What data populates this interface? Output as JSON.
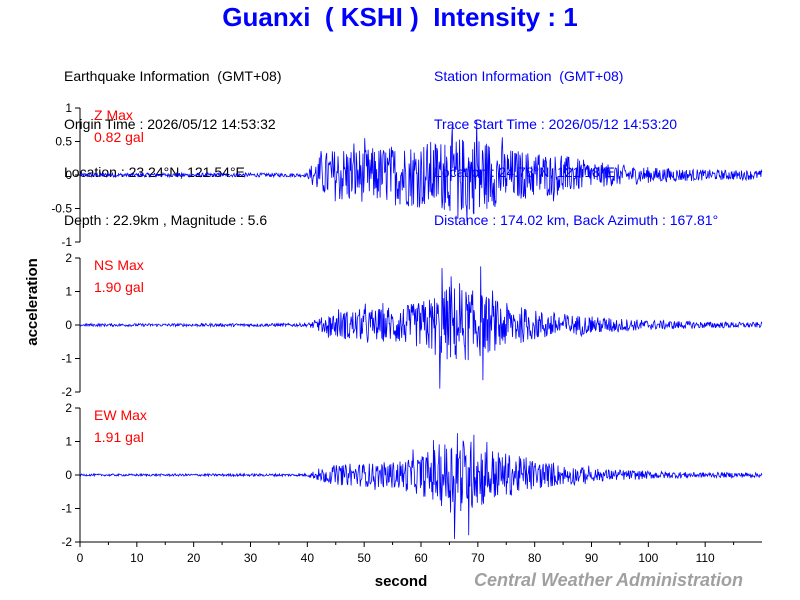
{
  "header": {
    "title": "Guanxi  ( KSHI )  Intensity : 1"
  },
  "earthquake_info": {
    "heading": "Earthquake Information  (GMT+08)",
    "origin_time": "Origin Time : 2026/05/12 14:53:32",
    "location": "Location : 23.24°N, 121.54°E",
    "depth_magnitude": "Depth : 22.9km , Magnitude : 5.6"
  },
  "station_info": {
    "heading": "Station Information  (GMT+08)",
    "trace_start": "Trace Start Time : 2026/05/12 14:53:20",
    "location": "Location : 24.78°N, 121.18°E",
    "distance": "Distance : 174.02 km, Back Azimuth : 167.81°"
  },
  "footer": {
    "credit": "Central Weather Administration"
  },
  "colors": {
    "trace": "#0000ff",
    "label": "#ff0000",
    "title": "#0000ff",
    "footer": "#a0a0a0"
  },
  "chart_data": {
    "type": "line",
    "xlabel": "second",
    "ylabel": "acceleration",
    "xlim": [
      0,
      120
    ],
    "x_ticks": [
      0,
      10,
      20,
      30,
      40,
      50,
      60,
      70,
      80,
      90,
      100,
      110
    ],
    "grid": false,
    "series": [
      {
        "name": "Z Max",
        "max_label": "0.82 gal",
        "max_value": 0.82,
        "ylim": [
          -1,
          1
        ],
        "y_ticks": [
          1,
          0.5,
          0,
          -0.5,
          -1
        ],
        "y_tick_labels": [
          "1",
          "0.5",
          "0",
          "-0.5",
          "-1"
        ],
        "envelope": [
          [
            0,
            0.03
          ],
          [
            40,
            0.03
          ],
          [
            41,
            0.2
          ],
          [
            43,
            0.35
          ],
          [
            47,
            0.45
          ],
          [
            50,
            0.4
          ],
          [
            55,
            0.45
          ],
          [
            60,
            0.5
          ],
          [
            65,
            0.55
          ],
          [
            70,
            0.6
          ],
          [
            75,
            0.4
          ],
          [
            80,
            0.35
          ],
          [
            85,
            0.3
          ],
          [
            90,
            0.2
          ],
          [
            100,
            0.12
          ],
          [
            110,
            0.08
          ],
          [
            120,
            0.07
          ]
        ],
        "peaks": [
          [
            69.8,
            0.82
          ],
          [
            68.1,
            -0.7
          ],
          [
            64.2,
            0.45
          ],
          [
            66.5,
            -0.65
          ]
        ]
      },
      {
        "name": "NS Max",
        "max_label": "1.90 gal",
        "max_value": 1.9,
        "ylim": [
          -2,
          2
        ],
        "y_ticks": [
          2,
          1,
          0,
          -1,
          -2
        ],
        "y_tick_labels": [
          "2",
          "1",
          "0",
          "-1",
          "-2"
        ],
        "envelope": [
          [
            0,
            0.04
          ],
          [
            40,
            0.05
          ],
          [
            42,
            0.2
          ],
          [
            45,
            0.4
          ],
          [
            50,
            0.5
          ],
          [
            55,
            0.5
          ],
          [
            60,
            0.7
          ],
          [
            63,
            1.0
          ],
          [
            66,
            1.2
          ],
          [
            70,
            1.0
          ],
          [
            74,
            0.7
          ],
          [
            80,
            0.45
          ],
          [
            85,
            0.35
          ],
          [
            90,
            0.25
          ],
          [
            100,
            0.15
          ],
          [
            110,
            0.1
          ],
          [
            120,
            0.08
          ]
        ],
        "peaks": [
          [
            63.3,
            -1.9
          ],
          [
            63.7,
            1.7
          ],
          [
            70.5,
            1.75
          ],
          [
            70.9,
            -1.65
          ]
        ]
      },
      {
        "name": "EW Max",
        "max_label": "1.91 gal",
        "max_value": 1.91,
        "ylim": [
          -2,
          2
        ],
        "y_ticks": [
          2,
          1,
          0,
          -1,
          -2
        ],
        "y_tick_labels": [
          "2",
          "1",
          "0",
          "-1",
          "-2"
        ],
        "envelope": [
          [
            0,
            0.03
          ],
          [
            40,
            0.04
          ],
          [
            42,
            0.2
          ],
          [
            45,
            0.3
          ],
          [
            50,
            0.35
          ],
          [
            55,
            0.4
          ],
          [
            60,
            0.6
          ],
          [
            63,
            0.9
          ],
          [
            66,
            1.2
          ],
          [
            70,
            1.0
          ],
          [
            74,
            0.7
          ],
          [
            80,
            0.45
          ],
          [
            85,
            0.3
          ],
          [
            90,
            0.2
          ],
          [
            100,
            0.12
          ],
          [
            110,
            0.08
          ],
          [
            120,
            0.07
          ]
        ],
        "peaks": [
          [
            65.9,
            -1.91
          ],
          [
            66.4,
            1.25
          ],
          [
            68.4,
            -1.8
          ],
          [
            69.3,
            1.2
          ]
        ]
      }
    ]
  }
}
